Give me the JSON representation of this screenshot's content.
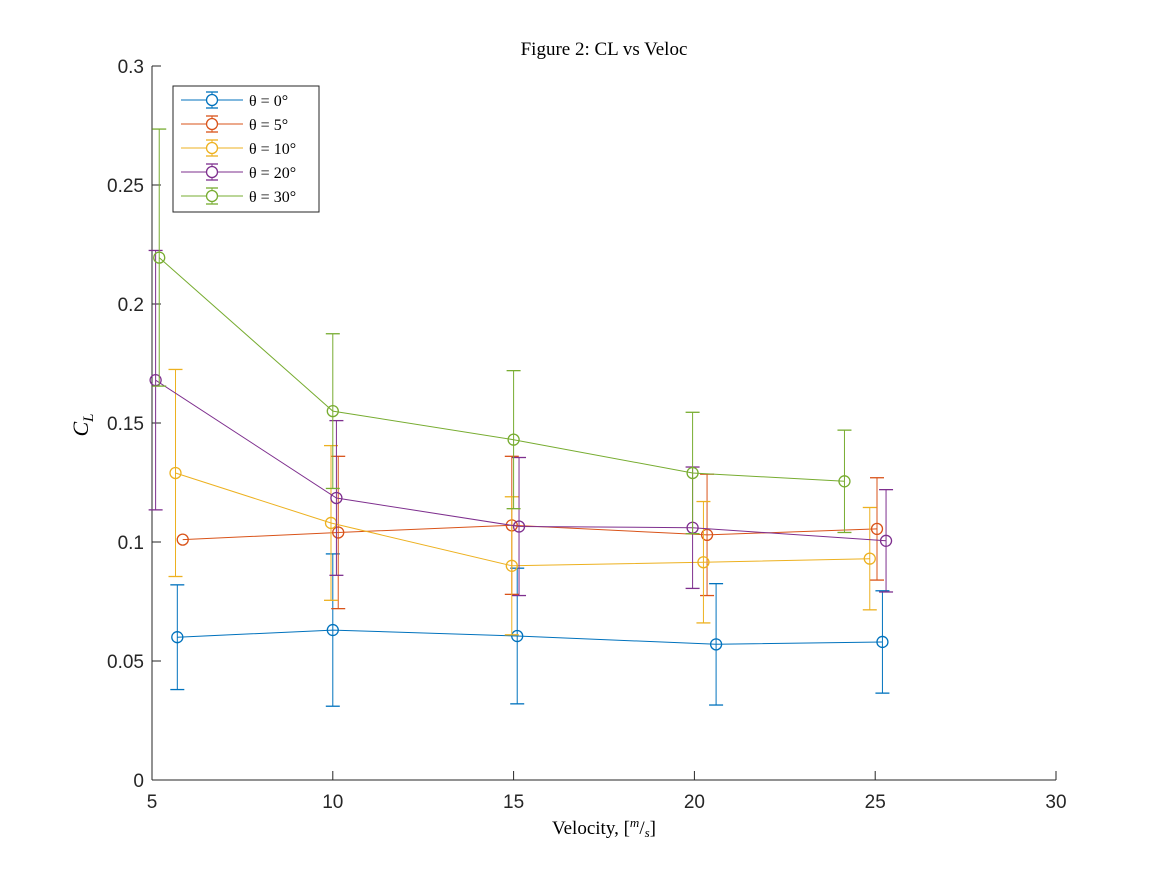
{
  "chart_data": {
    "type": "line",
    "title": "Figure 2: CL vs Veloc",
    "xlabel_prefix": "Velocity, [",
    "xlabel_num": "m",
    "xlabel_slash": "/",
    "xlabel_den": "s",
    "xlabel_suffix": "]",
    "ylabel_main": "C",
    "ylabel_sub": "L",
    "xlim": [
      5,
      30
    ],
    "ylim": [
      0,
      0.3
    ],
    "xticks": [
      5,
      10,
      15,
      20,
      25,
      30
    ],
    "xtick_labels": [
      "5",
      "10",
      "15",
      "20",
      "25",
      "30"
    ],
    "yticks": [
      0,
      0.05,
      0.1,
      0.15,
      0.2,
      0.25,
      0.3
    ],
    "ytick_labels": [
      "0",
      "0.05",
      "0.1",
      "0.15",
      "0.2",
      "0.25",
      "0.3"
    ],
    "grid": false,
    "legend_position": "top-left",
    "series": [
      {
        "name": "θ = 0°",
        "color": "#0072BD",
        "x": [
          5.7,
          10.0,
          15.1,
          20.6,
          25.2
        ],
        "y": [
          0.06,
          0.063,
          0.0605,
          0.057,
          0.058
        ],
        "err": [
          0.022,
          0.032,
          0.0285,
          0.0255,
          0.0215
        ]
      },
      {
        "name": "θ = 5°",
        "color": "#D95319",
        "x": [
          5.85,
          10.15,
          14.95,
          20.35,
          25.05
        ],
        "y": [
          0.101,
          0.104,
          0.107,
          0.103,
          0.1055
        ],
        "err": [
          0.0,
          0.032,
          0.029,
          0.0255,
          0.0215
        ]
      },
      {
        "name": "θ = 10°",
        "color": "#EDB120",
        "x": [
          5.65,
          9.95,
          14.95,
          20.25,
          24.85
        ],
        "y": [
          0.129,
          0.108,
          0.09,
          0.0915,
          0.093
        ],
        "err": [
          0.0435,
          0.0325,
          0.029,
          0.0255,
          0.0215
        ]
      },
      {
        "name": "θ = 20°",
        "color": "#7E2F8E",
        "x": [
          5.1,
          10.1,
          15.15,
          19.95,
          25.3
        ],
        "y": [
          0.168,
          0.1185,
          0.1065,
          0.106,
          0.1005
        ],
        "err": [
          0.0545,
          0.0325,
          0.029,
          0.0255,
          0.0215
        ]
      },
      {
        "name": "θ = 30°",
        "color": "#77AC30",
        "x": [
          5.2,
          10.0,
          15.0,
          19.95,
          24.15
        ],
        "y": [
          0.2195,
          0.155,
          0.143,
          0.129,
          0.1255
        ],
        "err": [
          0.054,
          0.0325,
          0.029,
          0.0255,
          0.0215
        ]
      }
    ]
  }
}
